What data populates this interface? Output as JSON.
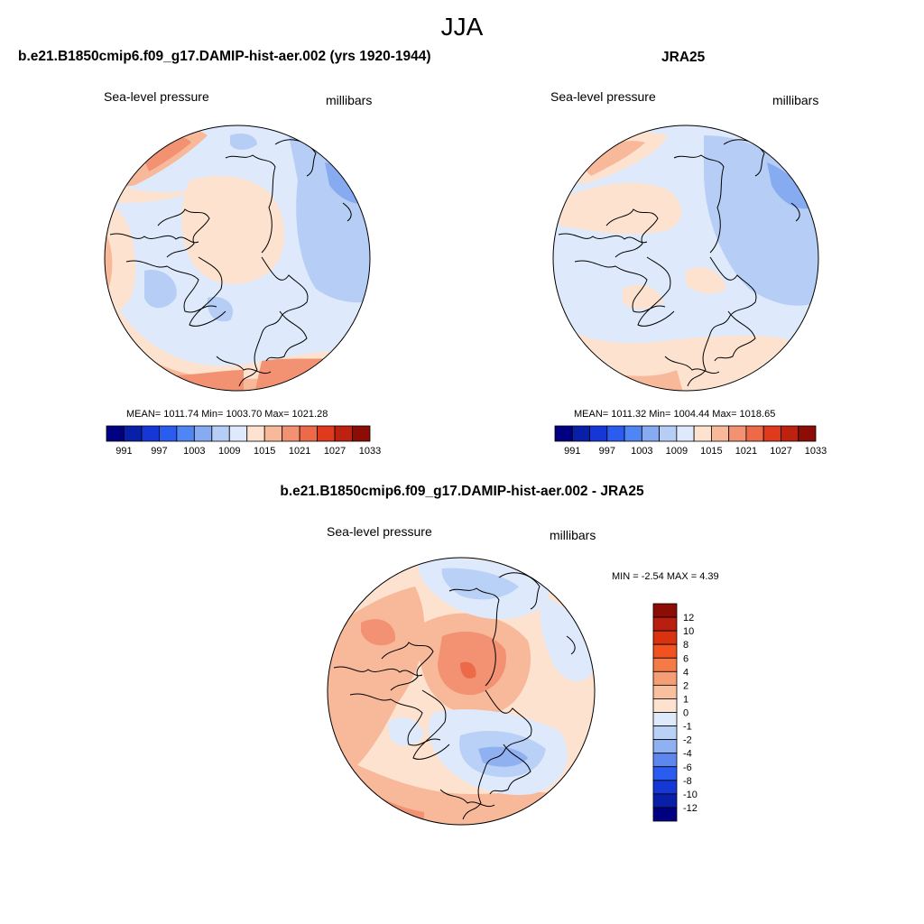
{
  "header": {
    "title": "JJA"
  },
  "panels": [
    {
      "id": "model",
      "title": "b.e21.B1850cmip6.f09_g17.DAMIP-hist-aer.002 (yrs 1920-1944)",
      "left_label": "Sea-level pressure",
      "right_label": "millibars",
      "stats": "MEAN= 1011.74  Min= 1003.70  Max= 1021.28"
    },
    {
      "id": "obs",
      "title": "JRA25",
      "left_label": "Sea-level pressure",
      "right_label": "millibars",
      "stats": "MEAN= 1011.32  Min= 1004.44  Max= 1018.65"
    },
    {
      "id": "diff",
      "title": "b.e21.B1850cmip6.f09_g17.DAMIP-hist-aer.002 - JRA25",
      "left_label": "Sea-level pressure",
      "right_label": "millibars",
      "stats": "MIN =  -2.54 MAX =   4.39"
    }
  ],
  "horizontal_colorbar": {
    "colors": [
      "#000080",
      "#0a1fa8",
      "#1437d6",
      "#2a5cf0",
      "#4f86f4",
      "#86abf1",
      "#b6cdf6",
      "#deeafb",
      "#fde3cf",
      "#f8b99a",
      "#f29272",
      "#ec6a48",
      "#e03a1d",
      "#bd2110",
      "#8c0c06"
    ],
    "labels": [
      "991",
      "997",
      "1003",
      "1009",
      "1015",
      "1021",
      "1027",
      "1033"
    ]
  },
  "vertical_colorbar": {
    "colors": [
      "#8c0c06",
      "#b81f0f",
      "#d9320f",
      "#f1521f",
      "#f47a48",
      "#f59d74",
      "#f8c09f",
      "#fde3cf",
      "#deeafb",
      "#b9d0f7",
      "#8fb0f1",
      "#5d87ee",
      "#2a5cf0",
      "#1437d6",
      "#0a1fa8",
      "#000080"
    ],
    "labels": [
      "12",
      "10",
      "8",
      "6",
      "4",
      "2",
      "1",
      "0",
      "-1",
      "-2",
      "-4",
      "-6",
      "-8",
      "-10",
      "-12"
    ]
  }
}
